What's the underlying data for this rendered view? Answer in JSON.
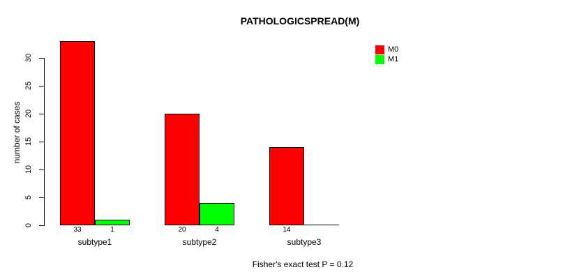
{
  "chart_data": {
    "type": "bar",
    "title": "PATHOLOGICSPREAD(M)",
    "xlabel": "",
    "ylabel": "number of cases",
    "categories": [
      "subtype1",
      "subtype2",
      "subtype3"
    ],
    "series": [
      {
        "name": "M0",
        "color": "#FF0000",
        "values": [
          33,
          20,
          14
        ],
        "value_labels": [
          "33",
          "20",
          "14"
        ]
      },
      {
        "name": "M1",
        "color": "#00FF00",
        "values": [
          1,
          4,
          0
        ],
        "value_labels": [
          "1",
          "4",
          ""
        ]
      }
    ],
    "yticks": [
      0,
      5,
      10,
      15,
      20,
      25,
      30
    ],
    "ylim": [
      0,
      33
    ],
    "grid": false,
    "legend_position": "top-right",
    "annotation": "Fisher's exact test P = 0.12"
  },
  "colors": {
    "background": "#FFFFFF",
    "axis": "#000000",
    "bar_border": "#000000"
  }
}
